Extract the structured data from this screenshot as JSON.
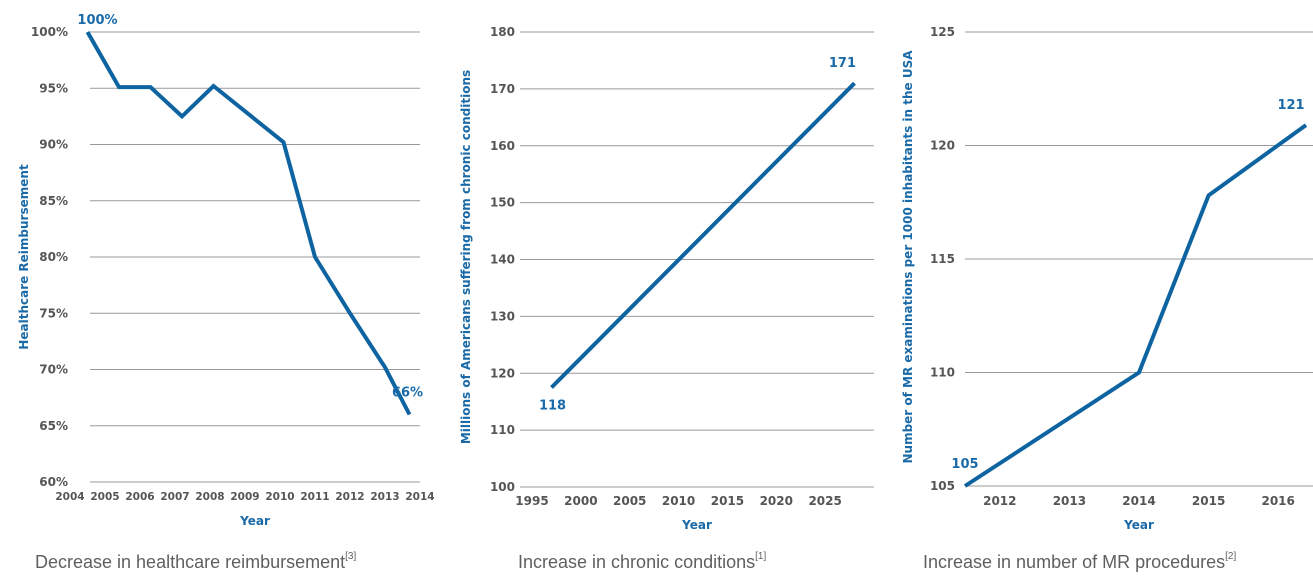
{
  "chart_data": [
    {
      "type": "line",
      "title": "",
      "xlabel": "Year",
      "ylabel": "Healthcare Reimbursement",
      "x_ticks": [
        "2004",
        "2005",
        "2006",
        "2007",
        "2008",
        "2009",
        "2010",
        "2011",
        "2012",
        "2013",
        "2014"
      ],
      "y_ticks": [
        "60%",
        "65%",
        "70%",
        "75%",
        "80%",
        "85%",
        "90%",
        "95%",
        "100%"
      ],
      "xlim": [
        2004,
        2014
      ],
      "ylim": [
        60,
        100
      ],
      "grid": true,
      "series": [
        {
          "x": [
            2004.5,
            2005.4,
            2006.3,
            2007.2,
            2008.1,
            2009.1,
            2010.1,
            2011.0,
            2012.0,
            2013.0,
            2013.7
          ],
          "values": [
            100,
            95.1,
            95.1,
            92.5,
            95.2,
            92.7,
            90.2,
            80,
            75,
            70.2,
            66
          ]
        }
      ],
      "annotations": [
        {
          "text": "100%",
          "x": 2004.5,
          "y": 100
        },
        {
          "text": "66%",
          "x": 2013.7,
          "y": 66
        }
      ],
      "caption": "Decrease in healthcare reimbursement",
      "caption_ref": "[3]"
    },
    {
      "type": "line",
      "title": "",
      "xlabel": "Year",
      "ylabel": "Millions of Americans suffering from chronic conditions",
      "x_ticks": [
        "1995",
        "2000",
        "2005",
        "2010",
        "2015",
        "2020",
        "2025"
      ],
      "y_ticks": [
        "100",
        "110",
        "120",
        "130",
        "140",
        "150",
        "160",
        "170",
        "180"
      ],
      "xlim": [
        1995,
        2030
      ],
      "ylim": [
        100,
        180
      ],
      "grid": true,
      "series": [
        {
          "x": [
            1997,
            2028
          ],
          "values": [
            117.5,
            171
          ]
        }
      ],
      "annotations": [
        {
          "text": "118",
          "x": 1997,
          "y": 117.5
        },
        {
          "text": "171",
          "x": 2028,
          "y": 171
        }
      ],
      "caption": "Increase in chronic conditions",
      "caption_ref": "[1]"
    },
    {
      "type": "line",
      "title": "",
      "xlabel": "Year",
      "ylabel": "Number of MR examinations per 1000 inhabitants in the USA",
      "x_ticks": [
        "2012",
        "2013",
        "2014",
        "2015",
        "2016"
      ],
      "y_ticks": [
        "105",
        "110",
        "115",
        "120",
        "125"
      ],
      "xlim": [
        2011.5,
        2016.5
      ],
      "ylim": [
        105,
        125
      ],
      "grid": true,
      "series": [
        {
          "x": [
            2011.5,
            2014.0,
            2015.0,
            2016.4
          ],
          "values": [
            105,
            110,
            117.8,
            120.9
          ]
        }
      ],
      "annotations": [
        {
          "text": "105",
          "x": 2011.5,
          "y": 105
        },
        {
          "text": "121",
          "x": 2016.4,
          "y": 120.9
        }
      ],
      "caption": "Increase in number of MR procedures",
      "caption_ref": "[2]"
    }
  ],
  "colors": {
    "series": "#0e64a0",
    "label": "#1a6aa8",
    "tick": "#555555",
    "grid": "#999999",
    "caption": "#5f5f5f"
  }
}
